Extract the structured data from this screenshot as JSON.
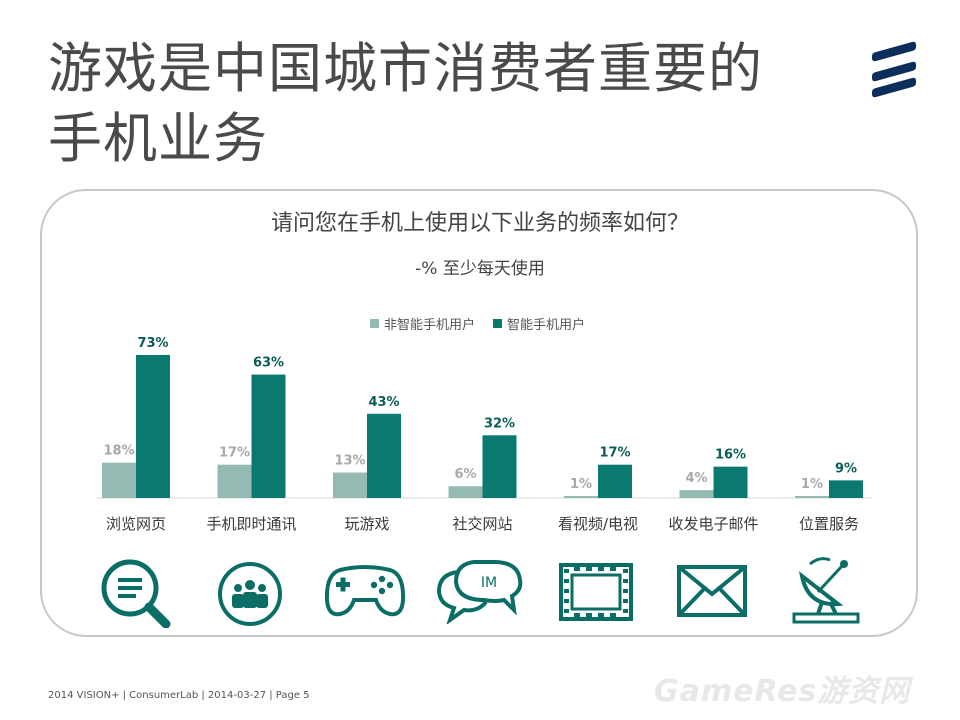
{
  "title": "游戏是中国城市消费者重要的手机业务",
  "question": "请问您在手机上使用以下业务的频率如何？",
  "subtitle": "-% 至少每天使用",
  "legend": {
    "non_smartphone": "非智能手机用户",
    "smartphone": "智能手机用户"
  },
  "colors": {
    "non_smartphone": "#95bab3",
    "smartphone": "#0a7a70",
    "non_smartphone_label": "#a9a9a9",
    "smartphone_label": "#0a5e57",
    "icon": "#0b6e66"
  },
  "chart_data": {
    "type": "bar",
    "categories": [
      "浏览网页",
      "手机即时通讯",
      "玩游戏",
      "社交网站",
      "看视频/电视",
      "收发电子邮件",
      "位置服务"
    ],
    "series": [
      {
        "name": "非智能手机用户",
        "values": [
          18,
          17,
          13,
          6,
          1,
          4,
          1
        ]
      },
      {
        "name": "智能手机用户",
        "values": [
          73,
          63,
          43,
          32,
          17,
          16,
          9
        ]
      }
    ],
    "value_suffix": "%",
    "ylim": [
      0,
      80
    ]
  },
  "icons": [
    "search-icon",
    "people-icon",
    "gamepad-icon",
    "chat-icon",
    "film-icon",
    "mail-icon",
    "satellite-icon"
  ],
  "icon_text": {
    "chat": "IM"
  },
  "footer": "2014 VISION+  |  ConsumerLab  |  2014-03-27  |  Page 5",
  "watermark": "GameRes游资网"
}
